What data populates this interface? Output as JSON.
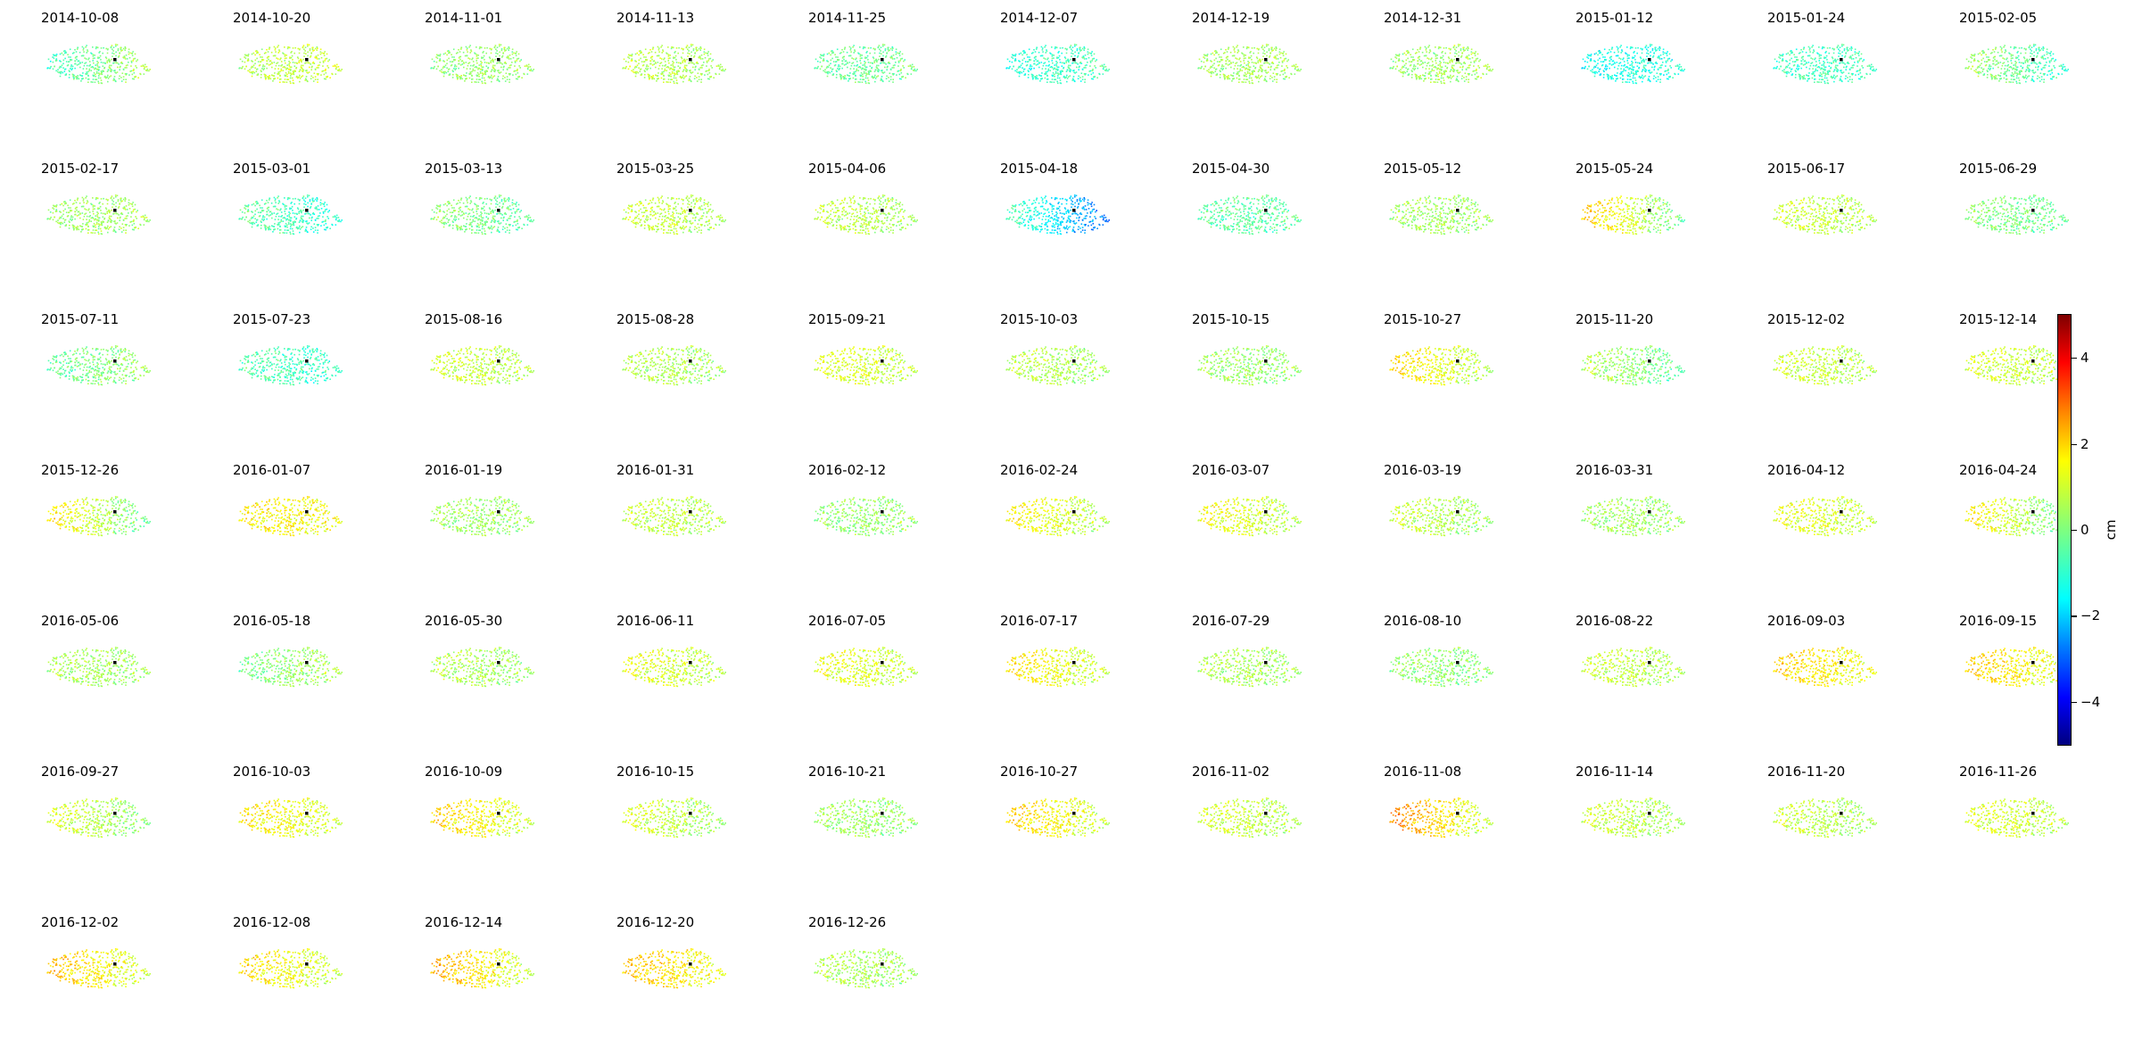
{
  "chart_data": {
    "type": "scatter",
    "colormap": "jet",
    "panels": [
      {
        "date": "2014-10-08",
        "mean": 0.1,
        "west": -0.8,
        "east": 0.6
      },
      {
        "date": "2014-10-20",
        "mean": 0.6,
        "west": 0.4,
        "east": 0.8
      },
      {
        "date": "2014-11-01",
        "mean": 0.2,
        "west": 0.1,
        "east": 0.3
      },
      {
        "date": "2014-11-13",
        "mean": 0.4,
        "west": 0.6,
        "east": 0.3
      },
      {
        "date": "2014-11-25",
        "mean": -0.2,
        "west": -0.3,
        "east": -0.1
      },
      {
        "date": "2014-12-07",
        "mean": -0.6,
        "west": -1.0,
        "east": -0.4
      },
      {
        "date": "2014-12-19",
        "mean": 0.3,
        "west": 0.3,
        "east": 0.4
      },
      {
        "date": "2014-12-31",
        "mean": 0.2,
        "west": 0.2,
        "east": 0.4
      },
      {
        "date": "2015-01-12",
        "mean": -1.0,
        "west": -1.2,
        "east": -0.8
      },
      {
        "date": "2015-01-24",
        "mean": -0.6,
        "west": -0.7,
        "east": -0.5
      },
      {
        "date": "2015-02-05",
        "mean": -0.2,
        "west": 0.4,
        "east": -0.9
      },
      {
        "date": "2015-02-17",
        "mean": 0.3,
        "west": 0.2,
        "east": 0.4
      },
      {
        "date": "2015-03-01",
        "mean": -0.5,
        "west": -0.2,
        "east": -1.0
      },
      {
        "date": "2015-03-13",
        "mean": -0.1,
        "west": 0.2,
        "east": -0.4
      },
      {
        "date": "2015-03-25",
        "mean": 0.6,
        "west": 0.8,
        "east": 0.4
      },
      {
        "date": "2015-04-06",
        "mean": 0.5,
        "west": 0.7,
        "east": 0.3
      },
      {
        "date": "2015-04-18",
        "mean": -1.2,
        "west": -0.3,
        "east": -2.8
      },
      {
        "date": "2015-04-30",
        "mean": -0.4,
        "west": -0.4,
        "east": -0.3
      },
      {
        "date": "2015-05-12",
        "mean": 0.3,
        "west": 0.3,
        "east": 0.3
      },
      {
        "date": "2015-05-24",
        "mean": 0.6,
        "west": 2.0,
        "east": -0.4
      },
      {
        "date": "2015-06-17",
        "mean": 0.6,
        "west": 0.8,
        "east": 0.5
      },
      {
        "date": "2015-06-29",
        "mean": 0.0,
        "west": 0.1,
        "east": -0.2
      },
      {
        "date": "2015-07-11",
        "mean": 0.0,
        "west": -0.4,
        "east": 0.4
      },
      {
        "date": "2015-07-23",
        "mean": -0.6,
        "west": -0.4,
        "east": -0.8
      },
      {
        "date": "2015-08-16",
        "mean": 0.6,
        "west": 0.8,
        "east": 0.5
      },
      {
        "date": "2015-08-28",
        "mean": 0.4,
        "west": 0.6,
        "east": 0.3
      },
      {
        "date": "2015-09-21",
        "mean": 0.8,
        "west": 1.0,
        "east": 0.6
      },
      {
        "date": "2015-10-03",
        "mean": 0.4,
        "west": 0.6,
        "east": 0.3
      },
      {
        "date": "2015-10-15",
        "mean": 0.3,
        "west": 0.3,
        "east": 0.2
      },
      {
        "date": "2015-10-27",
        "mean": 0.9,
        "west": 1.7,
        "east": 0.3
      },
      {
        "date": "2015-11-20",
        "mean": 0.1,
        "west": 0.6,
        "east": -0.4
      },
      {
        "date": "2015-12-02",
        "mean": 0.6,
        "west": 0.8,
        "east": 0.5
      },
      {
        "date": "2015-12-14",
        "mean": 0.7,
        "west": 0.9,
        "east": 0.5
      },
      {
        "date": "2015-12-26",
        "mean": 0.3,
        "west": 1.6,
        "east": -0.4
      },
      {
        "date": "2016-01-07",
        "mean": 1.2,
        "west": 1.4,
        "east": 1.1
      },
      {
        "date": "2016-01-19",
        "mean": 0.3,
        "west": 0.3,
        "east": 0.3
      },
      {
        "date": "2016-01-31",
        "mean": 0.6,
        "west": 0.7,
        "east": 0.5
      },
      {
        "date": "2016-02-12",
        "mean": 0.2,
        "west": 0.1,
        "east": 0.3
      },
      {
        "date": "2016-02-24",
        "mean": 0.9,
        "west": 1.4,
        "east": 0.4
      },
      {
        "date": "2016-03-07",
        "mean": 0.8,
        "west": 1.3,
        "east": 0.4
      },
      {
        "date": "2016-03-19",
        "mean": 0.5,
        "west": 0.8,
        "east": 0.2
      },
      {
        "date": "2016-03-31",
        "mean": 0.3,
        "west": 0.3,
        "east": 0.3
      },
      {
        "date": "2016-04-12",
        "mean": 0.8,
        "west": 1.1,
        "east": 0.6
      },
      {
        "date": "2016-04-24",
        "mean": 0.6,
        "west": 1.6,
        "east": -0.4
      },
      {
        "date": "2016-05-06",
        "mean": 0.3,
        "west": 0.4,
        "east": 0.3
      },
      {
        "date": "2016-05-18",
        "mean": 0.2,
        "west": -0.2,
        "east": 0.6
      },
      {
        "date": "2016-05-30",
        "mean": 0.4,
        "west": 0.5,
        "east": 0.3
      },
      {
        "date": "2016-06-11",
        "mean": 0.8,
        "west": 1.1,
        "east": 0.5
      },
      {
        "date": "2016-07-05",
        "mean": 0.8,
        "west": 1.1,
        "east": 0.6
      },
      {
        "date": "2016-07-17",
        "mean": 1.0,
        "west": 1.6,
        "east": 0.5
      },
      {
        "date": "2016-07-29",
        "mean": 0.4,
        "west": 0.5,
        "east": 0.3
      },
      {
        "date": "2016-08-10",
        "mean": 0.2,
        "west": 0.2,
        "east": 0.1
      },
      {
        "date": "2016-08-22",
        "mean": 0.6,
        "west": 0.8,
        "east": 0.4
      },
      {
        "date": "2016-09-03",
        "mean": 1.3,
        "west": 1.7,
        "east": 1.0
      },
      {
        "date": "2016-09-15",
        "mean": 1.2,
        "west": 1.8,
        "east": 0.8
      },
      {
        "date": "2016-09-27",
        "mean": 0.5,
        "west": 1.0,
        "east": 0.0
      },
      {
        "date": "2016-10-03",
        "mean": 1.0,
        "west": 1.5,
        "east": 0.7
      },
      {
        "date": "2016-10-09",
        "mean": 1.1,
        "west": 1.8,
        "east": 0.6
      },
      {
        "date": "2016-10-15",
        "mean": 0.6,
        "west": 1.0,
        "east": 0.2
      },
      {
        "date": "2016-10-21",
        "mean": 0.3,
        "west": 0.3,
        "east": 0.2
      },
      {
        "date": "2016-10-27",
        "mean": 1.1,
        "west": 1.8,
        "east": 0.6
      },
      {
        "date": "2016-11-02",
        "mean": 0.6,
        "west": 0.9,
        "east": 0.4
      },
      {
        "date": "2016-11-08",
        "mean": 1.2,
        "west": 2.6,
        "east": 0.4
      },
      {
        "date": "2016-11-14",
        "mean": 0.5,
        "west": 0.8,
        "east": 0.3
      },
      {
        "date": "2016-11-20",
        "mean": 0.5,
        "west": 0.8,
        "east": 0.3
      },
      {
        "date": "2016-11-26",
        "mean": 0.7,
        "west": 1.0,
        "east": 0.5
      },
      {
        "date": "2016-12-02",
        "mean": 1.2,
        "west": 2.0,
        "east": 0.6
      },
      {
        "date": "2016-12-08",
        "mean": 1.0,
        "west": 1.6,
        "east": 0.6
      },
      {
        "date": "2016-12-14",
        "mean": 1.2,
        "west": 2.2,
        "east": 0.5
      },
      {
        "date": "2016-12-20",
        "mean": 1.3,
        "west": 1.9,
        "east": 1.0
      },
      {
        "date": "2016-12-26",
        "mean": 0.4,
        "west": 0.5,
        "east": 0.3
      }
    ],
    "colorbar": {
      "label": "cm",
      "vmin": -5,
      "vmax": 5,
      "ticks": [
        4,
        2,
        0,
        -2,
        -4
      ],
      "tick_labels": [
        "4",
        "2",
        "0",
        "−2",
        "−4"
      ]
    }
  }
}
